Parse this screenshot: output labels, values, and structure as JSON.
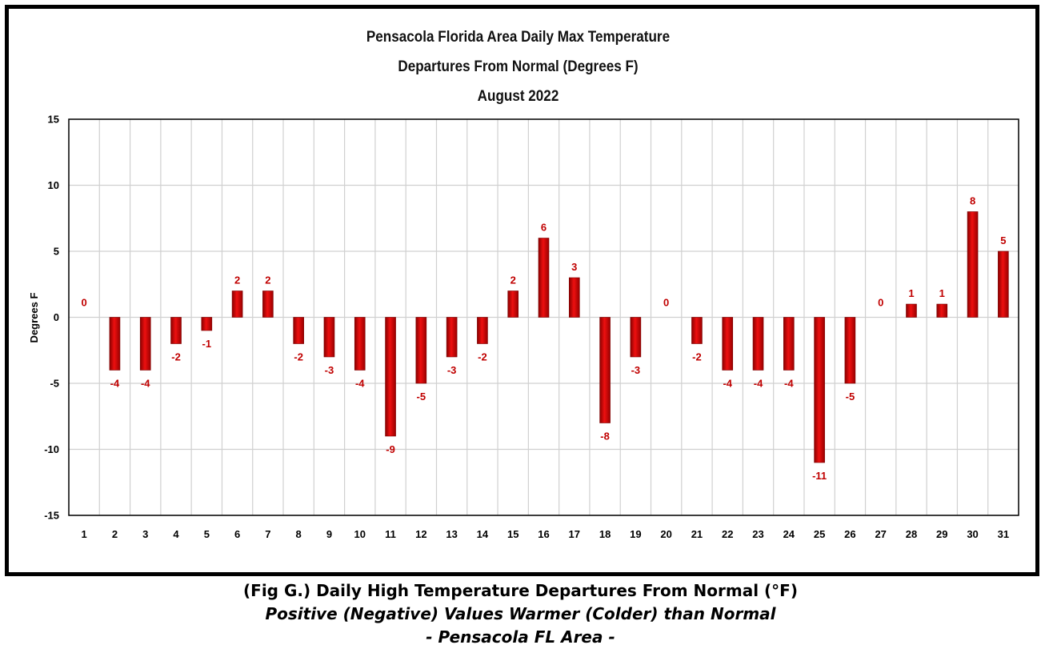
{
  "chart_data": {
    "type": "bar",
    "title": [
      "Pensacola Florida Area Daily Max Temperature",
      "Departures From Normal (Degrees F)",
      "August 2022"
    ],
    "xlabel": "",
    "ylabel": "Degrees F",
    "ylim": [
      -15,
      15
    ],
    "yticks": [
      15,
      10,
      5,
      0,
      -5,
      -10,
      -15
    ],
    "grid": true,
    "legend": "none",
    "bar_color": "#d40000",
    "label_color": "#c00000",
    "categories": [
      "1",
      "2",
      "3",
      "4",
      "5",
      "6",
      "7",
      "8",
      "9",
      "10",
      "11",
      "12",
      "13",
      "14",
      "15",
      "16",
      "17",
      "18",
      "19",
      "20",
      "21",
      "22",
      "23",
      "24",
      "25",
      "26",
      "27",
      "28",
      "29",
      "30",
      "31"
    ],
    "values": [
      0,
      -4,
      -4,
      -2,
      -1,
      2,
      2,
      -2,
      -3,
      -4,
      -9,
      -5,
      -3,
      -2,
      2,
      6,
      3,
      -8,
      -3,
      0,
      -2,
      -4,
      -4,
      -4,
      -11,
      -5,
      0,
      1,
      1,
      8,
      5
    ]
  },
  "caption": {
    "line1": "(Fig G.) Daily High Temperature Departures From Normal (°F)",
    "line2": "Positive (Negative) Values Warmer (Colder) than Normal",
    "line3": "- Pensacola FL Area -"
  }
}
